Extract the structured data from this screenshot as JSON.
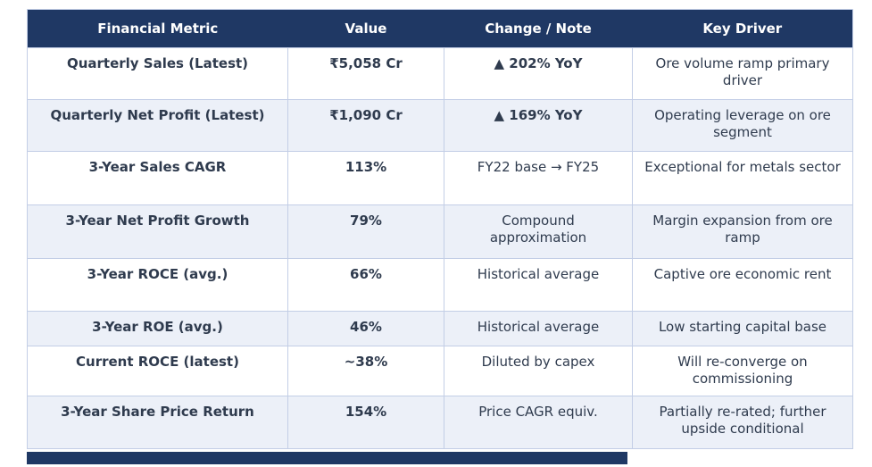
{
  "table": {
    "header": [
      "Financial Metric",
      "Value",
      "Change / Note",
      "Key Driver"
    ],
    "rows": [
      {
        "metric": "Quarterly Sales (Latest)",
        "value": "₹5,058 Cr",
        "value_style": "dark",
        "note": "▲ 202% YoY",
        "note_style": "green",
        "driver": "Ore volume ramp primary driver"
      },
      {
        "metric": "Quarterly Net Profit (Latest)",
        "value": "₹1,090 Cr",
        "value_style": "dark",
        "note": "▲ 169% YoY",
        "note_style": "green",
        "driver": "Operating leverage on ore segment"
      },
      {
        "metric": "3-Year Sales CAGR",
        "value": "113%",
        "value_style": "green",
        "note": "FY22 base → FY25",
        "note_style": "plain",
        "driver": "Exceptional for metals sector"
      },
      {
        "metric": "3-Year Net Profit Growth",
        "value": "79%",
        "value_style": "green",
        "note": "Compound approximation",
        "note_style": "plain",
        "driver": "Margin expansion from ore ramp"
      },
      {
        "metric": "3-Year ROCE (avg.)",
        "value": "66%",
        "value_style": "green",
        "note": "Historical average",
        "note_style": "plain",
        "driver": "Captive ore economic rent"
      },
      {
        "metric": "3-Year ROE (avg.)",
        "value": "46%",
        "value_style": "green",
        "note": "Historical average",
        "note_style": "plain",
        "driver": "Low starting capital base"
      },
      {
        "metric": "Current ROCE (latest)",
        "value": "~38%",
        "value_style": "orange",
        "note": "Diluted by capex",
        "note_style": "plain",
        "driver": "Will re-converge on commissioning"
      },
      {
        "metric": "3-Year Share Price Return",
        "value": "154%",
        "value_style": "green",
        "note": "Price CAGR equiv.",
        "note_style": "plain",
        "driver": "Partially re-rated; further upside conditional"
      }
    ]
  },
  "colors": {
    "header_bg": "#1F3864",
    "header_text": "#FFFFFF",
    "row_alt_bg": "#ECF0F8",
    "border": "#C3CEE6",
    "text": "#2F3B4E",
    "green": "#1E8C42",
    "orange": "#C05F2A",
    "footer_bar": "#1F3864"
  }
}
